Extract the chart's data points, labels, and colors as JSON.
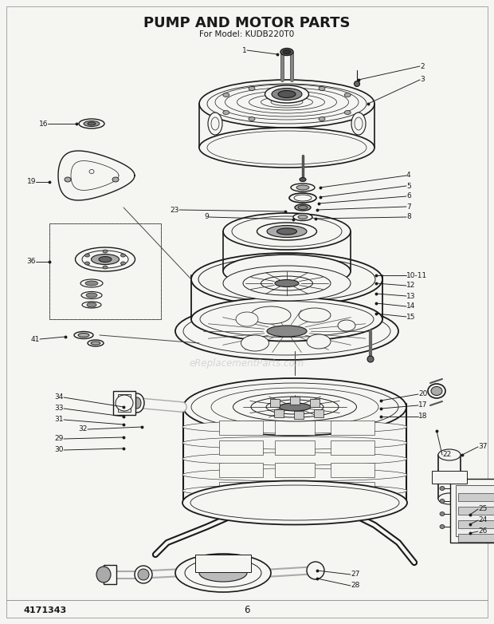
{
  "title": "PUMP AND MOTOR PARTS",
  "subtitle": "For Model: KUDB220T0",
  "part_number": "4171343",
  "page_number": "6",
  "bg_color": "#f5f5f2",
  "title_fontsize": 13,
  "subtitle_fontsize": 7.5,
  "watermark": "eReplacementParts.com",
  "text_color": "#1a1a1a",
  "line_color": "#1a1a1a",
  "fig_width": 6.2,
  "fig_height": 7.82,
  "dpi": 100
}
